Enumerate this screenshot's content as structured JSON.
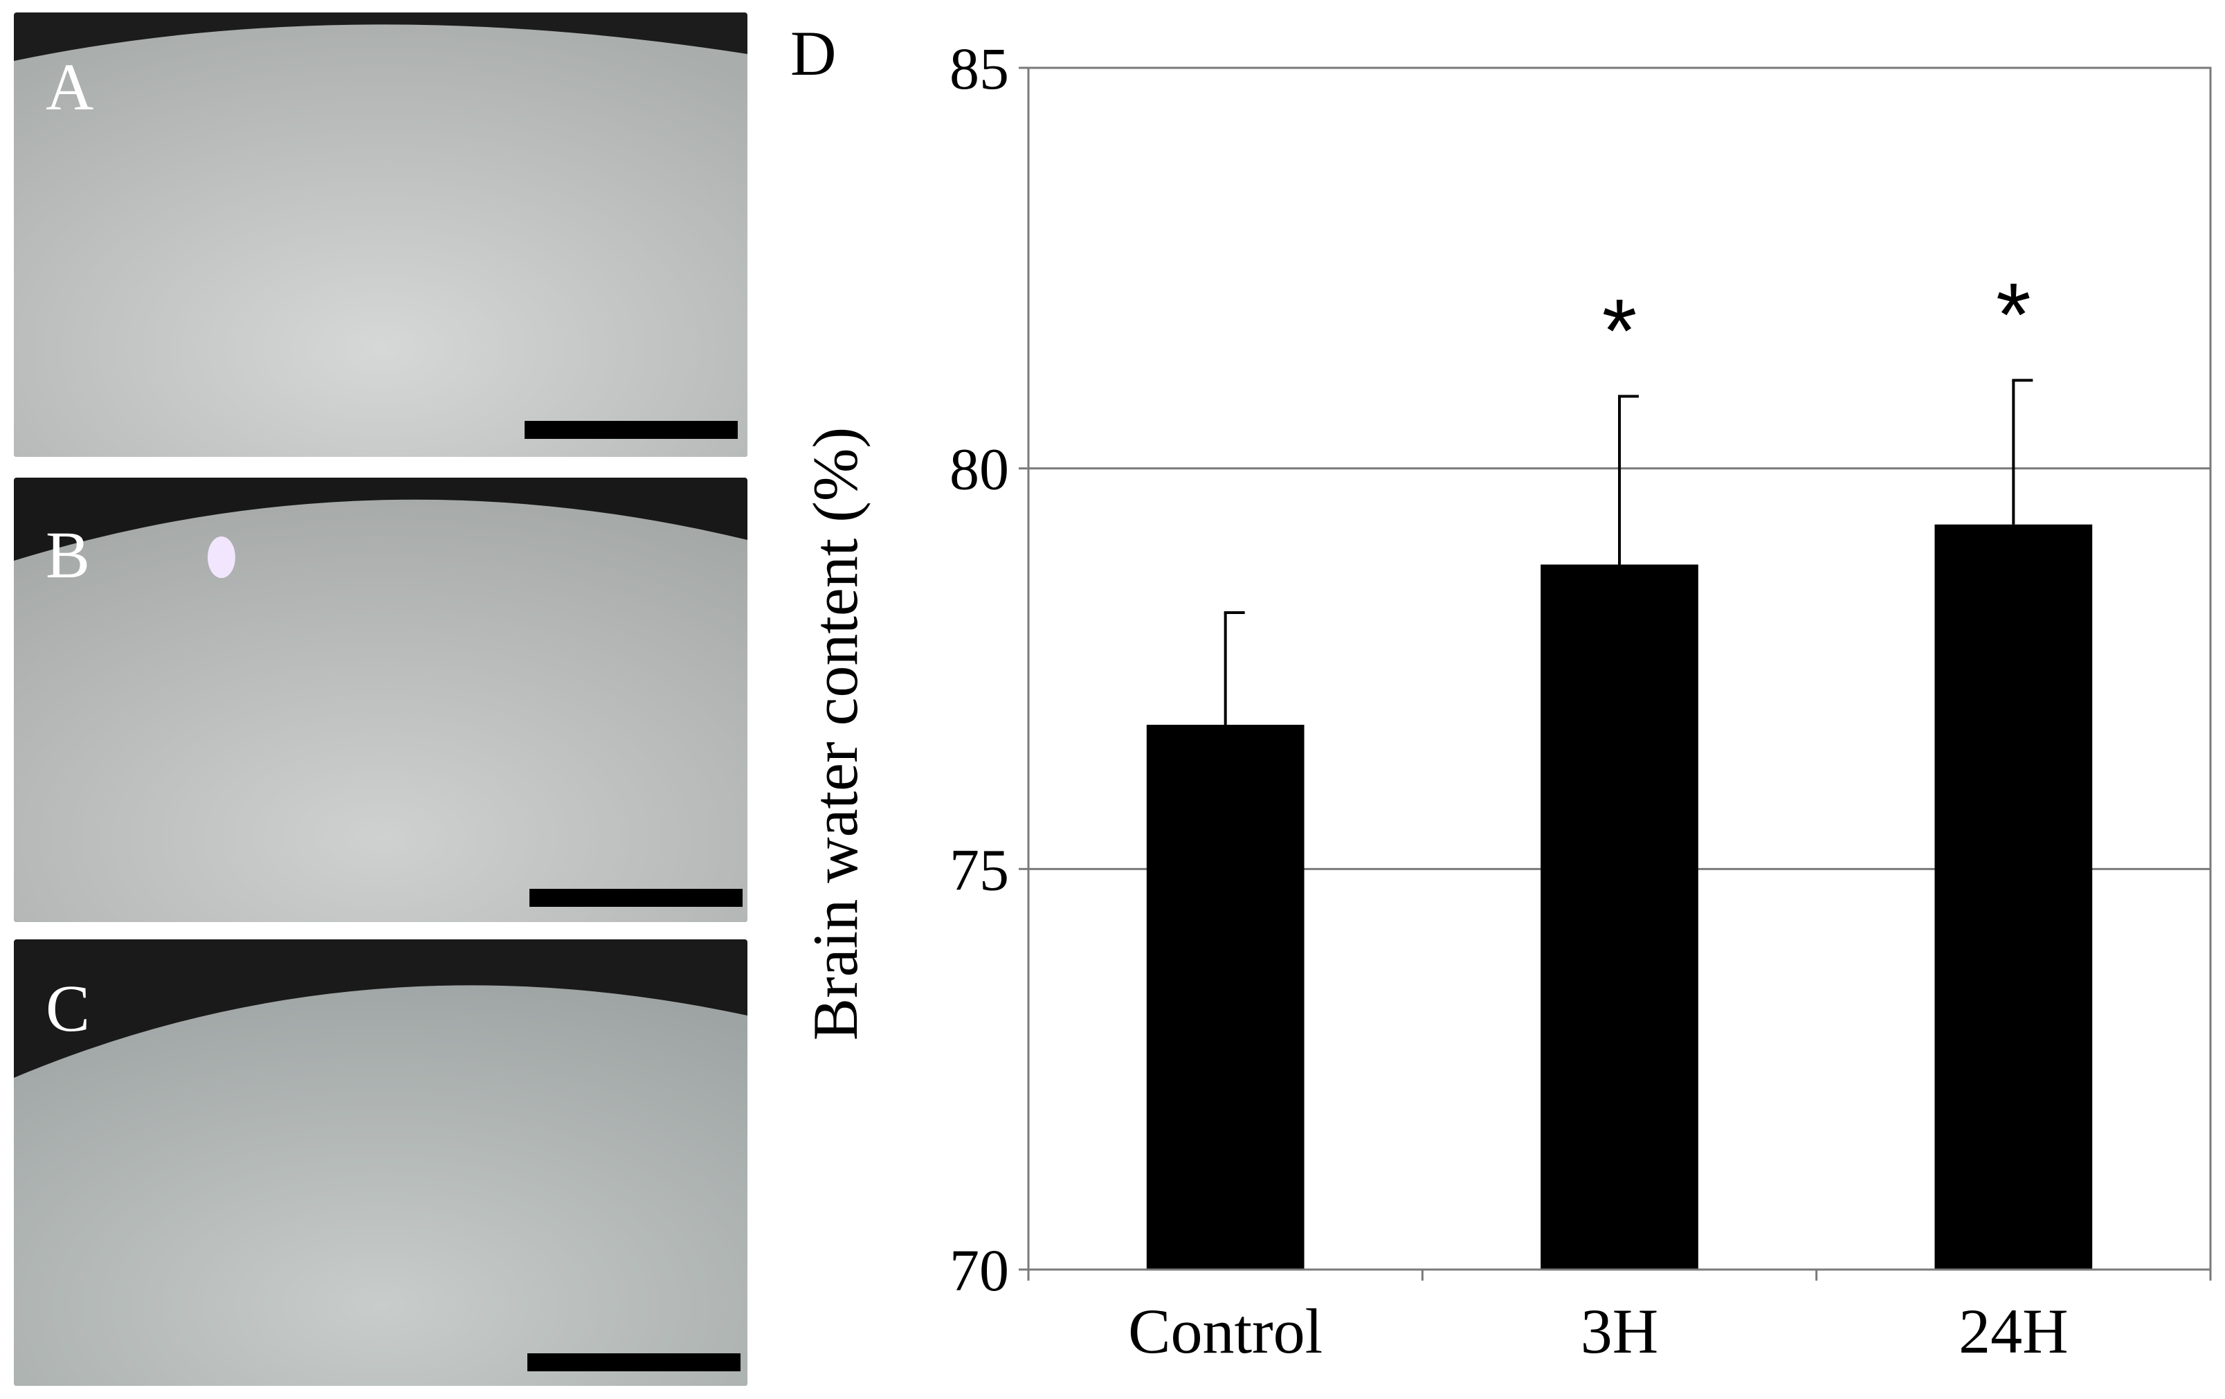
{
  "panels": [
    {
      "letter": "A",
      "description_colors": {
        "tissue": "#bfc2c1",
        "background": "#1a1a1a"
      }
    },
    {
      "letter": "B",
      "description_colors": {
        "tissue": "#b8bbba",
        "background": "#1a1a1a"
      }
    },
    {
      "letter": "C",
      "description_colors": {
        "tissue": "#b3b8b7",
        "background": "#1a1a1a"
      }
    }
  ],
  "chart_data": {
    "type": "bar",
    "panel_label": "D",
    "title": "",
    "xlabel": "",
    "ylabel": "Brain water content (%)",
    "ylim": [
      70,
      85
    ],
    "yticks": [
      70,
      75,
      80,
      85
    ],
    "grid": true,
    "categories": [
      "Control",
      "3H",
      "24H"
    ],
    "values": [
      76.8,
      78.8,
      79.3
    ],
    "errors": [
      1.4,
      2.1,
      1.8
    ],
    "significance": [
      "",
      "*",
      "*"
    ],
    "bar_color": "#000000"
  }
}
